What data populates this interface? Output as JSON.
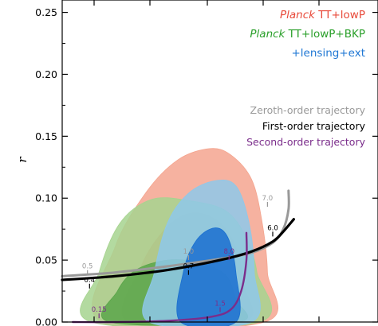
{
  "chart_data": {
    "type": "contour",
    "ylabel": "r",
    "xlabel": "",
    "xlim": [
      0.94,
      1.0
    ],
    "ylim": [
      0.0,
      0.26
    ],
    "yticks": [
      0.0,
      0.05,
      0.1,
      0.15,
      0.2,
      0.25
    ],
    "ytick_labels": [
      "0.00",
      "0.05",
      "0.10",
      "0.15",
      "0.20",
      "0.25"
    ],
    "colors": {
      "planck": "#e84a3a",
      "bkp": "#2ca02c",
      "lensing": "#1f77d4",
      "zeroth": "#999999",
      "first": "#000000",
      "second": "#7b2d8b"
    },
    "legend_top": [
      {
        "italic": "Planck",
        "rest": " TT+lowP",
        "color": "#e84a3a"
      },
      {
        "italic": "Planck",
        "rest": " TT+lowP+BKP",
        "color": "#2ca02c"
      },
      {
        "italic": "",
        "rest": "+lensing+ext",
        "color": "#1f77d4"
      }
    ],
    "legend_trajectories": [
      {
        "label": "Zeroth-order trajectory",
        "color": "#999999"
      },
      {
        "label": "First-order trajectory",
        "color": "#000000"
      },
      {
        "label": "Second-order trajectory",
        "color": "#7b2d8b"
      }
    ],
    "regions": [
      {
        "name": "Planck TT+lowP 95%",
        "color": "#f4a58f",
        "points": [
          [
            0.9475,
            0
          ],
          [
            0.95,
            0.06
          ],
          [
            0.956,
            0.105
          ],
          [
            0.962,
            0.131
          ],
          [
            0.968,
            0.14
          ],
          [
            0.972,
            0.135
          ],
          [
            0.976,
            0.115
          ],
          [
            0.978,
            0.08
          ],
          [
            0.979,
            0.04
          ],
          [
            0.9785,
            0
          ]
        ]
      },
      {
        "name": "Planck TT+lowP 68%",
        "color": "#ee7d6a",
        "points": [
          [
            0.9525,
            0
          ],
          [
            0.955,
            0.045
          ],
          [
            0.96,
            0.077
          ],
          [
            0.965,
            0.088
          ],
          [
            0.97,
            0.08
          ],
          [
            0.973,
            0.06
          ],
          [
            0.9745,
            0.03
          ],
          [
            0.9745,
            0
          ]
        ]
      },
      {
        "name": "Planck TT+lowP+BKP 95%",
        "color": "#a6d38f",
        "points": [
          [
            0.9455,
            0
          ],
          [
            0.947,
            0.04
          ],
          [
            0.951,
            0.08
          ],
          [
            0.957,
            0.099
          ],
          [
            0.964,
            0.098
          ],
          [
            0.971,
            0.09
          ],
          [
            0.975,
            0.068
          ],
          [
            0.977,
            0.04
          ],
          [
            0.9775,
            0
          ]
        ]
      },
      {
        "name": "Planck TT+lowP+BKP 68%",
        "color": "#5aa64a",
        "points": [
          [
            0.949,
            0
          ],
          [
            0.9505,
            0.025
          ],
          [
            0.954,
            0.042
          ],
          [
            0.96,
            0.05
          ],
          [
            0.966,
            0.048
          ],
          [
            0.971,
            0.038
          ],
          [
            0.973,
            0.018
          ],
          [
            0.9735,
            0
          ]
        ]
      },
      {
        "name": "+lensing+ext 95%",
        "color": "#8ec8ea",
        "points": [
          [
            0.9565,
            0
          ],
          [
            0.9575,
            0.04
          ],
          [
            0.96,
            0.08
          ],
          [
            0.964,
            0.104
          ],
          [
            0.969,
            0.114
          ],
          [
            0.973,
            0.11
          ],
          [
            0.9755,
            0.08
          ],
          [
            0.9765,
            0.04
          ],
          [
            0.976,
            0
          ]
        ]
      },
      {
        "name": "+lensing+ext 68%",
        "color": "#1a6fd0",
        "points": [
          [
            0.9625,
            0
          ],
          [
            0.963,
            0.04
          ],
          [
            0.9655,
            0.066
          ],
          [
            0.969,
            0.076
          ],
          [
            0.9715,
            0.068
          ],
          [
            0.973,
            0.04
          ],
          [
            0.973,
            0
          ]
        ]
      }
    ],
    "trajectories": [
      {
        "name": "Zeroth-order trajectory",
        "color": "#999999",
        "points": [
          [
            0.94,
            0.037
          ],
          [
            0.95,
            0.04
          ],
          [
            0.96,
            0.045
          ],
          [
            0.97,
            0.051
          ],
          [
            0.976,
            0.056
          ],
          [
            0.98,
            0.064
          ],
          [
            0.982,
            0.075
          ],
          [
            0.983,
            0.091
          ],
          [
            0.983,
            0.106
          ]
        ]
      },
      {
        "name": "First-order trajectory",
        "color": "#000000",
        "points": [
          [
            0.94,
            0.034
          ],
          [
            0.95,
            0.037
          ],
          [
            0.96,
            0.042
          ],
          [
            0.97,
            0.05
          ],
          [
            0.976,
            0.057
          ],
          [
            0.98,
            0.065
          ],
          [
            0.982,
            0.073
          ],
          [
            0.984,
            0.083
          ]
        ]
      },
      {
        "name": "Second-order trajectory",
        "color": "#7b2d8b",
        "points": [
          [
            0.942,
            0
          ],
          [
            0.95,
            0.0
          ],
          [
            0.96,
            0.001
          ],
          [
            0.968,
            0.004
          ],
          [
            0.972,
            0.01
          ],
          [
            0.974,
            0.025
          ],
          [
            0.975,
            0.05
          ],
          [
            0.975,
            0.072
          ]
        ]
      }
    ],
    "annotations": [
      {
        "text": "0.5",
        "x": 0.9448,
        "y": 0.04,
        "color": "#999999"
      },
      {
        "text": "0.4",
        "x": 0.9452,
        "y": 0.029,
        "color": "#000000"
      },
      {
        "text": "1.0",
        "x": 0.964,
        "y": 0.052,
        "color": "#999999"
      },
      {
        "text": "0.7",
        "x": 0.964,
        "y": 0.04,
        "color": "#000000"
      },
      {
        "text": "0.15",
        "x": 0.947,
        "y": 0.005,
        "color": "#7b2d8b"
      },
      {
        "text": "1.5",
        "x": 0.97,
        "y": 0.01,
        "color": "#7b2d8b"
      },
      {
        "text": "8.0",
        "x": 0.9717,
        "y": 0.052,
        "color": "#7b2d8b"
      },
      {
        "text": "7.0",
        "x": 0.979,
        "y": 0.095,
        "color": "#999999"
      },
      {
        "text": "6.0",
        "x": 0.98,
        "y": 0.071,
        "color": "#000000"
      }
    ]
  }
}
